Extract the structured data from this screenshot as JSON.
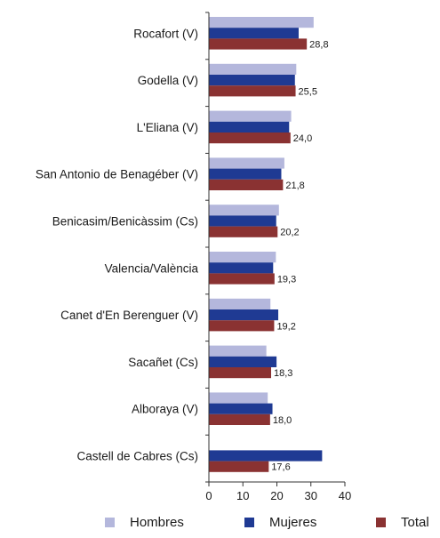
{
  "chart_data": {
    "type": "bar",
    "orientation": "horizontal",
    "categories": [
      "Rocafort (V)",
      "Godella (V)",
      "L'Eliana (V)",
      "San Antonio de Benagéber (V)",
      "Benicasim/Benicàssim (Cs)",
      "Valencia/València",
      "Canet d'En Berenguer (V)",
      "Sacañet (Cs)",
      "Alboraya (V)",
      "Castell de Cabres (Cs)"
    ],
    "series": [
      {
        "name": "Hombres",
        "color": "#b4b7dc",
        "values": [
          30.8,
          25.7,
          24.2,
          22.2,
          20.6,
          19.7,
          18.1,
          16.9,
          17.3,
          0
        ]
      },
      {
        "name": "Mujeres",
        "color": "#1f3a93",
        "values": [
          26.4,
          25.3,
          23.6,
          21.3,
          19.8,
          18.9,
          20.4,
          19.9,
          18.7,
          33.3
        ]
      },
      {
        "name": "Total",
        "color": "#8a3232",
        "values": [
          28.8,
          25.5,
          24.0,
          21.8,
          20.2,
          19.3,
          19.2,
          18.3,
          18.0,
          17.6
        ]
      }
    ],
    "data_labels": [
      "28,8",
      "25,5",
      "24,0",
      "21,8",
      "20,2",
      "19,3",
      "19,2",
      "18,3",
      "18,0",
      "17,6"
    ],
    "xlim": [
      0,
      40
    ],
    "xticks": [
      "0",
      "10",
      "20",
      "30",
      "40"
    ],
    "grid": false,
    "legend": "bottom"
  }
}
